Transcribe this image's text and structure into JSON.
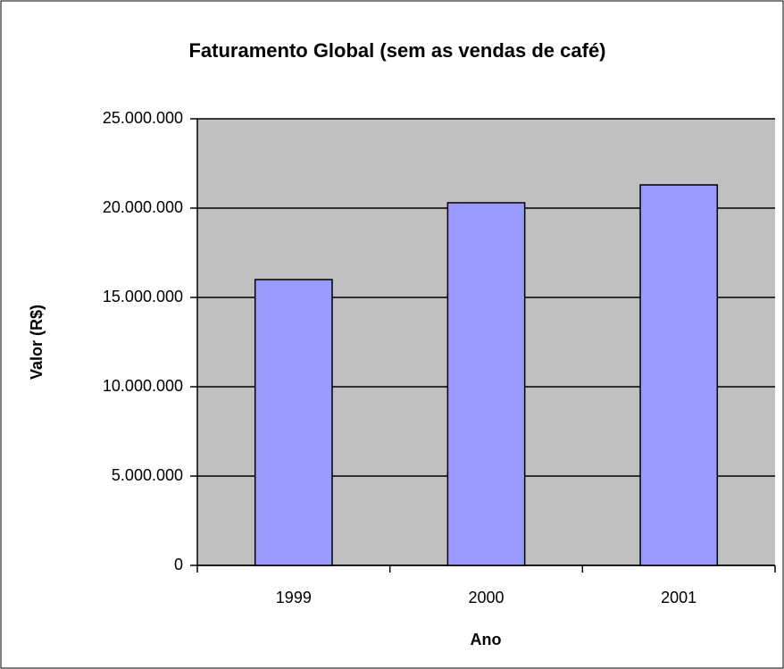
{
  "chart_data": {
    "type": "bar",
    "title": "Faturamento Global (sem as vendas de café)",
    "x_label": "Ano",
    "y_label": "Valor (R$)",
    "categories": [
      "1999",
      "2000",
      "2001"
    ],
    "values": [
      16000000,
      20300000,
      21300000
    ],
    "color": "#9999ff",
    "ylim": [
      0,
      25000000
    ],
    "yticks": [
      0,
      {
        "value": 5000000,
        "label": "5.000.000"
      },
      {
        "value": 10000000,
        "label": "10.000.000"
      },
      {
        "value": 15000000,
        "label": "15.000.000"
      },
      {
        "value": 20000000,
        "label": "20.000.000"
      },
      {
        "value": 25000000,
        "label": "25.000.000"
      }
    ],
    "grid": true
  }
}
